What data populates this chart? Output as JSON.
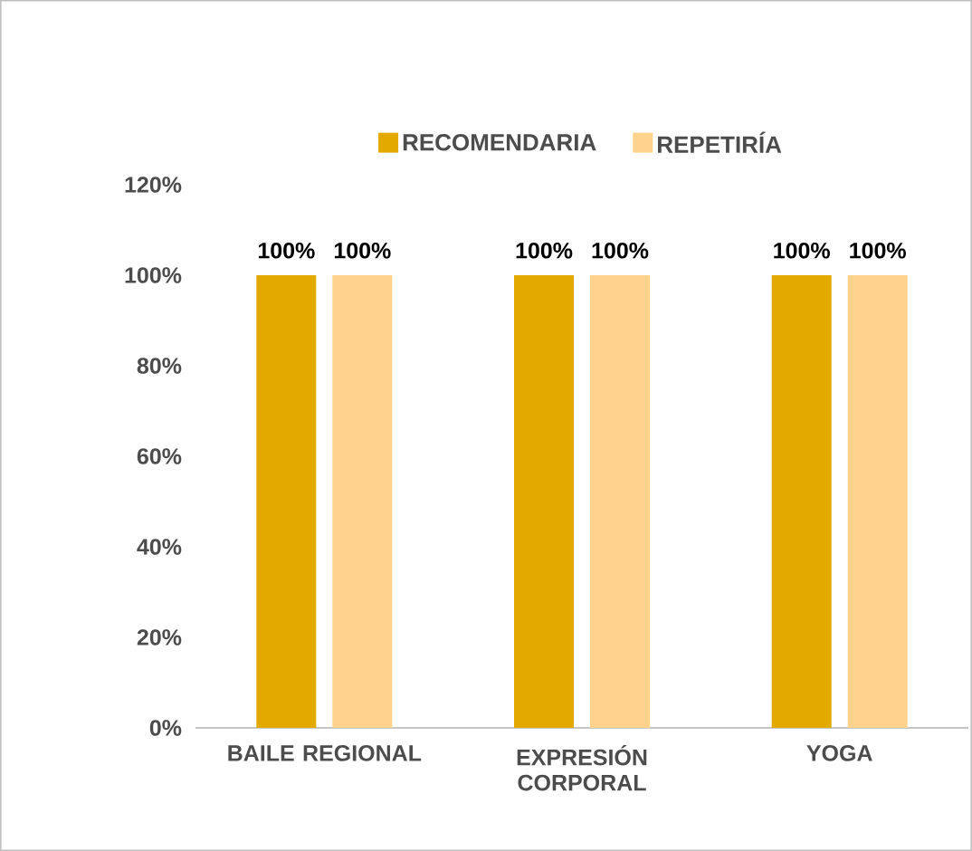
{
  "chart_data": {
    "type": "bar",
    "categories": [
      "BAILE REGIONAL",
      "EXPRESIÓN CORPORAL",
      "YOGA"
    ],
    "series": [
      {
        "name": "RECOMENDARIA",
        "color": "#e2aa00",
        "values": [
          100,
          100,
          100
        ],
        "value_labels": [
          "100%",
          "100%",
          "100%"
        ]
      },
      {
        "name": "REPETIRÍA",
        "color": "#ffd38c",
        "values": [
          100,
          100,
          100
        ],
        "value_labels": [
          "100%",
          "100%",
          "100%"
        ]
      }
    ],
    "ylim": [
      0,
      120
    ],
    "yticks": [
      {
        "value": 0,
        "label": "0%"
      },
      {
        "value": 20,
        "label": "20%"
      },
      {
        "value": 40,
        "label": "40%"
      },
      {
        "value": 60,
        "label": "60%"
      },
      {
        "value": 80,
        "label": "80%"
      },
      {
        "value": 100,
        "label": "100%"
      },
      {
        "value": 120,
        "label": "120%"
      }
    ],
    "legend": "top"
  }
}
